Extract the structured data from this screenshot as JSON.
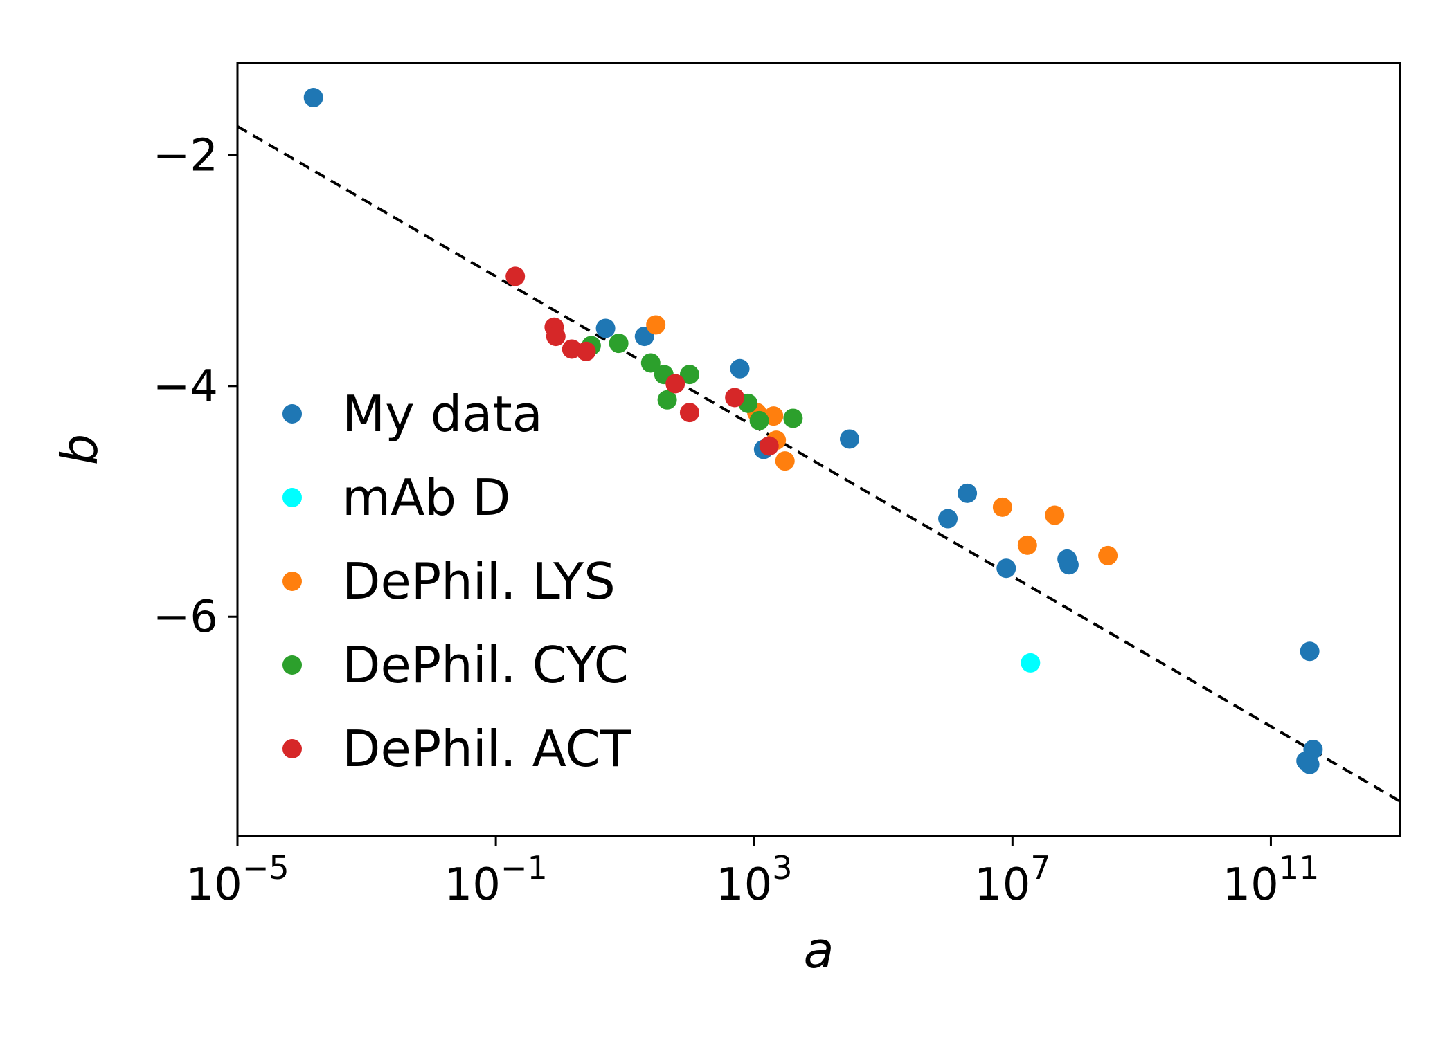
{
  "chart_data": {
    "type": "scatter",
    "xlabel": "a",
    "ylabel": "b",
    "xscale": "log",
    "xlim": [
      1e-05,
      10000000000000.0
    ],
    "ylim": [
      -7.9,
      -1.2
    ],
    "x_ticks": [
      {
        "value": 1e-05,
        "base": "10",
        "exp": "−5"
      },
      {
        "value": 0.1,
        "base": "10",
        "exp": "−1"
      },
      {
        "value": 1000.0,
        "base": "10",
        "exp": "3"
      },
      {
        "value": 10000000.0,
        "base": "10",
        "exp": "7"
      },
      {
        "value": 100000000000.0,
        "base": "10",
        "exp": "11"
      }
    ],
    "y_ticks": [
      {
        "value": -2,
        "label": "−2"
      },
      {
        "value": -4,
        "label": "−4"
      },
      {
        "value": -6,
        "label": "−6"
      }
    ],
    "grid": false,
    "legend_position": "center-left",
    "fit_line": {
      "style": "dashed",
      "color": "#000000",
      "points": [
        [
          1e-05,
          -1.75
        ],
        [
          10000000000000.0,
          -7.6
        ]
      ]
    },
    "series": [
      {
        "name": "My data",
        "color": "#1f77b4",
        "points": [
          [
            0.00015,
            -1.5
          ],
          [
            5,
            -3.5
          ],
          [
            20,
            -3.57
          ],
          [
            600,
            -3.85
          ],
          [
            1400,
            -4.55
          ],
          [
            30000,
            -4.46
          ],
          [
            2000000,
            -4.93
          ],
          [
            1000000,
            -5.15
          ],
          [
            8000000,
            -5.58
          ],
          [
            70000000,
            -5.5
          ],
          [
            75000000,
            -5.55
          ],
          [
            400000000000,
            -6.3
          ],
          [
            350000000000.0,
            -7.25
          ],
          [
            400000000000.0,
            -7.28
          ],
          [
            450000000000.0,
            -7.15
          ]
        ]
      },
      {
        "name": "mAb D",
        "color": "#00ffff",
        "points": [
          [
            19000000,
            -6.4
          ]
        ]
      },
      {
        "name": "DePhil. LYS",
        "color": "#ff7f0e",
        "points": [
          [
            30,
            -3.47
          ],
          [
            1100,
            -4.23
          ],
          [
            2000,
            -4.26
          ],
          [
            2200,
            -4.47
          ],
          [
            3000,
            -4.65
          ],
          [
            7000000,
            -5.05
          ],
          [
            17000000,
            -5.38
          ],
          [
            45000000,
            -5.12
          ],
          [
            300000000,
            -5.47
          ]
        ]
      },
      {
        "name": "DePhil. CYC",
        "color": "#2ca02c",
        "points": [
          [
            3,
            -3.65
          ],
          [
            8,
            -3.63
          ],
          [
            25,
            -3.8
          ],
          [
            40,
            -3.9
          ],
          [
            45,
            -4.12
          ],
          [
            100,
            -3.9
          ],
          [
            800,
            -4.15
          ],
          [
            1200,
            -4.3
          ],
          [
            4000,
            -4.28
          ]
        ]
      },
      {
        "name": "DePhil. ACT",
        "color": "#d62728",
        "points": [
          [
            0.2,
            -3.05
          ],
          [
            0.8,
            -3.49
          ],
          [
            0.85,
            -3.57
          ],
          [
            1.5,
            -3.68
          ],
          [
            2.5,
            -3.7
          ],
          [
            60,
            -3.98
          ],
          [
            100,
            -4.23
          ],
          [
            500,
            -4.1
          ],
          [
            1700,
            -4.52
          ]
        ]
      }
    ]
  }
}
